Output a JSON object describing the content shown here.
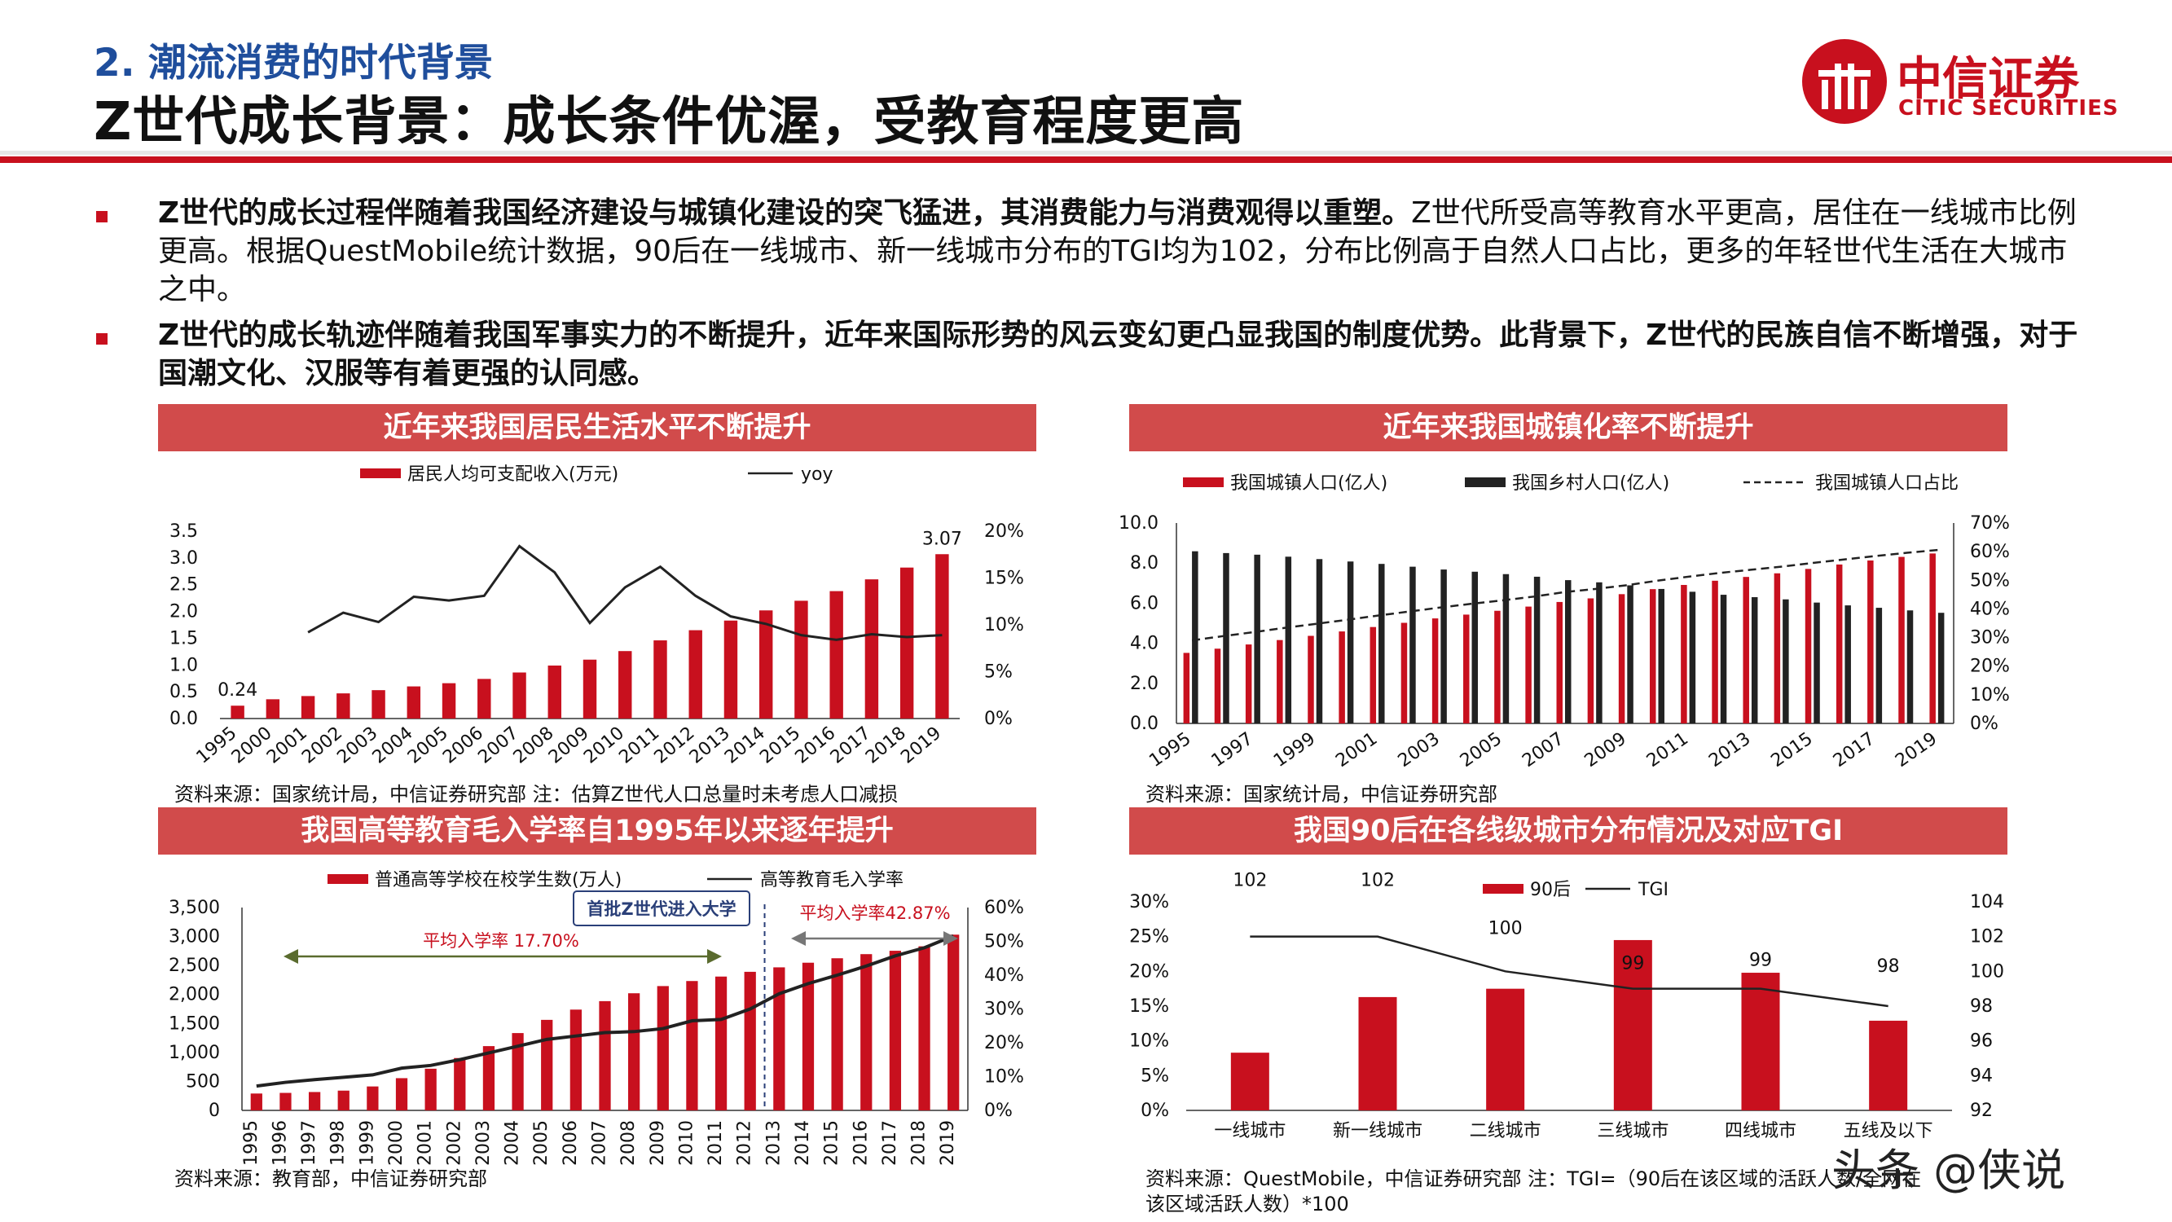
{
  "header": {
    "section": "2. 潮流消费的时代背景",
    "title": "Z世代成长背景：成长条件优渥，受教育程度更高"
  },
  "logo": {
    "cn": "中信证券",
    "en": "CITIC SECURITIES"
  },
  "bullets": [
    {
      "bold": "Z世代的成长过程伴随着我国经济建设与城镇化建设的突飞猛进，其消费能力与消费观得以重塑。",
      "text": "Z世代所受高等教育水平更高，居住在一线城市比例更高。根据QuestMobile统计数据，90后在一线城市、新一线城市分布的TGI均为102，分布比例高于自然人口占比，更多的年轻世代生活在大城市之中。"
    },
    {
      "bold": "Z世代的成长轨迹伴随着我国军事实力的不断提升，近年来国际形势的风云变幻更凸显我国的制度优势。此背景下，Z世代的民族自信不断增强，对于国潮文化、汉服等有着更强的认同感。",
      "text": ""
    }
  ],
  "panels": {
    "p1": {
      "title": "近年来我国居民生活水平不断提升",
      "source": "资料来源：国家统计局，中信证券研究部  注：估算Z世代人口总量时未考虑人口减损"
    },
    "p2": {
      "title": "近年来我国城镇化率不断提升",
      "source": "资料来源：国家统计局，中信证券研究部"
    },
    "p3": {
      "title": "我国高等教育毛入学率自1995年以来逐年提升",
      "source": "资料来源：教育部，中信证券研究部"
    },
    "p4": {
      "title": "我国90后在各线级城市分布情况及对应TGI",
      "source": "资料来源：QuestMobile，中信证券研究部  注：TGI=（90后在该区域的活跃人数/全网在",
      "source2": "该区域活跃人数）*100"
    }
  },
  "watermark": "头条 @侠说",
  "colors": {
    "red": "#c8101e",
    "panel": "#d14b4b",
    "dark": "#222222"
  },
  "chart_data": [
    {
      "type": "bar",
      "title": "近年来我国居民生活水平不断提升",
      "categories": [
        "1995",
        "2000",
        "2001",
        "2002",
        "2003",
        "2004",
        "2005",
        "2006",
        "2007",
        "2008",
        "2009",
        "2010",
        "2011",
        "2012",
        "2013",
        "2014",
        "2015",
        "2016",
        "2017",
        "2018",
        "2019"
      ],
      "series": [
        {
          "name": "居民人均可支配收入(万元)",
          "kind": "bar",
          "axis": "left",
          "values": [
            0.24,
            0.36,
            0.42,
            0.47,
            0.53,
            0.6,
            0.66,
            0.74,
            0.86,
            0.99,
            1.1,
            1.26,
            1.46,
            1.65,
            1.83,
            2.02,
            2.2,
            2.38,
            2.6,
            2.82,
            3.07
          ]
        },
        {
          "name": "yoy",
          "kind": "line",
          "axis": "right",
          "values": [
            null,
            null,
            9.2,
            11.3,
            10.3,
            13.0,
            12.6,
            13.1,
            18.4,
            15.6,
            10.2,
            14.0,
            16.2,
            13.1,
            10.9,
            10.1,
            8.9,
            8.4,
            9.0,
            8.7,
            8.9
          ]
        }
      ],
      "y_left": {
        "min": 0,
        "max": 3.5,
        "ticks": [
          "0.0",
          "0.5",
          "1.0",
          "1.5",
          "2.0",
          "2.5",
          "3.0",
          "3.5"
        ]
      },
      "y_right": {
        "min": 0,
        "max": 20,
        "ticks": [
          "0%",
          "5%",
          "10%",
          "15%",
          "20%"
        ]
      },
      "labels": [
        {
          "index": 0,
          "text": "0.24"
        },
        {
          "index": 20,
          "text": "3.07"
        }
      ]
    },
    {
      "type": "bar",
      "title": "近年来我国城镇化率不断提升",
      "categories": [
        "1995",
        "1996",
        "1997",
        "1998",
        "1999",
        "2000",
        "2001",
        "2002",
        "2003",
        "2004",
        "2005",
        "2006",
        "2007",
        "2008",
        "2009",
        "2010",
        "2011",
        "2012",
        "2013",
        "2014",
        "2015",
        "2016",
        "2017",
        "2018",
        "2019"
      ],
      "x_tick_labels": [
        "1995",
        "1997",
        "1999",
        "2001",
        "2003",
        "2005",
        "2007",
        "2009",
        "2011",
        "2013",
        "2015",
        "2017",
        "2019"
      ],
      "series": [
        {
          "name": "我国城镇人口(亿人)",
          "kind": "bar",
          "axis": "left",
          "values": [
            3.52,
            3.73,
            3.94,
            4.16,
            4.37,
            4.59,
            4.81,
            5.02,
            5.24,
            5.43,
            5.62,
            5.83,
            6.06,
            6.24,
            6.45,
            6.7,
            6.91,
            7.12,
            7.31,
            7.49,
            7.71,
            7.93,
            8.13,
            8.31,
            8.48
          ]
        },
        {
          "name": "我国乡村人口(亿人)",
          "kind": "bar",
          "axis": "left",
          "values": [
            8.59,
            8.5,
            8.42,
            8.32,
            8.2,
            8.08,
            7.96,
            7.82,
            7.68,
            7.57,
            7.45,
            7.32,
            7.15,
            7.04,
            6.89,
            6.71,
            6.57,
            6.42,
            6.3,
            6.19,
            6.03,
            5.89,
            5.77,
            5.64,
            5.52
          ]
        },
        {
          "name": "我国城镇人口占比",
          "kind": "line",
          "axis": "right",
          "values": [
            29.0,
            30.5,
            31.9,
            33.4,
            34.8,
            36.2,
            37.7,
            39.1,
            40.5,
            41.8,
            43.0,
            44.3,
            45.9,
            47.0,
            48.3,
            49.9,
            51.3,
            52.6,
            53.7,
            54.8,
            56.1,
            57.3,
            58.5,
            59.6,
            60.6
          ]
        }
      ],
      "y_left": {
        "min": 0,
        "max": 10,
        "ticks": [
          "0.0",
          "2.0",
          "4.0",
          "6.0",
          "8.0",
          "10.0"
        ]
      },
      "y_right": {
        "min": 0,
        "max": 70,
        "ticks": [
          "0%",
          "10%",
          "20%",
          "30%",
          "40%",
          "50%",
          "60%",
          "70%"
        ]
      }
    },
    {
      "type": "bar",
      "title": "我国高等教育毛入学率自1995年以来逐年提升",
      "categories": [
        "1995",
        "1996",
        "1997",
        "1998",
        "1999",
        "2000",
        "2001",
        "2002",
        "2003",
        "2004",
        "2005",
        "2006",
        "2007",
        "2008",
        "2009",
        "2010",
        "2011",
        "2012",
        "2013",
        "2014",
        "2015",
        "2016",
        "2017",
        "2018",
        "2019"
      ],
      "series": [
        {
          "name": "普通高等学校在校学生数(万人)",
          "kind": "bar",
          "axis": "left",
          "values": [
            291,
            302,
            317,
            341,
            413,
            556,
            719,
            903,
            1109,
            1334,
            1562,
            1739,
            1885,
            2021,
            2145,
            2232,
            2309,
            2391,
            2468,
            2548,
            2625,
            2696,
            2754,
            2831,
            3032
          ]
        },
        {
          "name": "高等教育毛入学率",
          "kind": "line",
          "axis": "right",
          "values": [
            7.2,
            8.3,
            9.1,
            9.8,
            10.5,
            12.5,
            13.3,
            15.0,
            17.0,
            19.0,
            21.0,
            22.0,
            23.0,
            23.3,
            24.2,
            26.5,
            26.9,
            30.0,
            34.5,
            37.5,
            40.0,
            42.7,
            45.7,
            48.1,
            51.6
          ]
        }
      ],
      "y_left": {
        "min": 0,
        "max": 3500,
        "ticks": [
          "0",
          "500",
          "1,000",
          "1,500",
          "2,000",
          "2,500",
          "3,000",
          "3,500"
        ]
      },
      "y_right": {
        "min": 0,
        "max": 60,
        "ticks": [
          "0%",
          "10%",
          "20%",
          "30%",
          "40%",
          "50%",
          "60%"
        ]
      },
      "annotations": {
        "before": "平均入学率 17.70%",
        "marker": "首批Z世代进入大学",
        "after": "平均入学率42.87%"
      }
    },
    {
      "type": "bar",
      "title": "我国90后在各线级城市分布情况及对应TGI",
      "categories": [
        "一线城市",
        "新一线城市",
        "二线城市",
        "三线城市",
        "四线城市",
        "五线及以下"
      ],
      "series": [
        {
          "name": "90后",
          "kind": "bar",
          "axis": "left",
          "values": [
            8.3,
            16.3,
            17.5,
            24.5,
            19.8,
            12.9
          ]
        },
        {
          "name": "TGI",
          "kind": "line",
          "axis": "right",
          "values": [
            102,
            102,
            100,
            99,
            99,
            98
          ]
        }
      ],
      "y_left": {
        "min": 0,
        "max": 30,
        "ticks": [
          "0%",
          "5%",
          "10%",
          "15%",
          "20%",
          "25%",
          "30%"
        ]
      },
      "y_right": {
        "min": 92,
        "max": 104,
        "ticks": [
          "92",
          "94",
          "96",
          "98",
          "100",
          "102",
          "104"
        ]
      }
    }
  ]
}
